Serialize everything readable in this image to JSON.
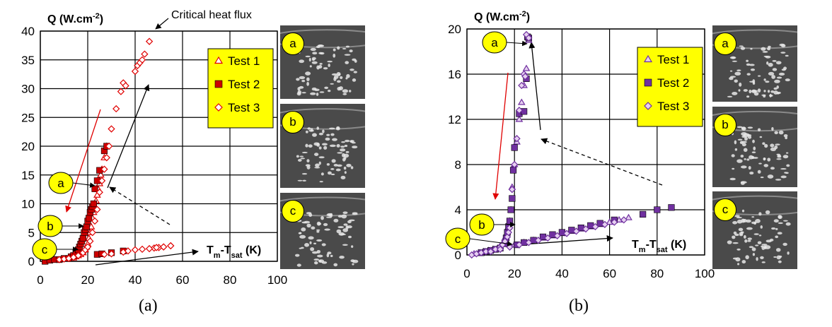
{
  "captions": [
    "(a)",
    "(b)"
  ],
  "photo_labels": [
    "a",
    "b",
    "c"
  ],
  "chart_data": [
    {
      "type": "scatter",
      "title": "",
      "ylabel_base": "Q (W.cm",
      "ylabel_sup": "-2",
      "ylabel_end": ")",
      "xlabel_main": "T",
      "xlabel_sub1": "m",
      "xlabel_mid": "-T",
      "xlabel_sub2": "sat",
      "xlabel_end": " (K)",
      "xlim": [
        0,
        100
      ],
      "ylim": [
        0,
        40
      ],
      "xticks": [
        0,
        20,
        40,
        60,
        80,
        100
      ],
      "yticks": [
        0,
        5,
        10,
        15,
        20,
        25,
        30,
        35,
        40
      ],
      "grid": true,
      "legend_position": "top-right",
      "annotation": "Critical heat flux",
      "point_labels": [
        "a",
        "b",
        "c"
      ],
      "colors": {
        "series": "#e00000",
        "filled": "#cc0000",
        "legend_bg": "#ffff00",
        "label_bg": "#ffff00"
      },
      "series": [
        {
          "name": "Test 1",
          "marker": "triangle-open",
          "x": [
            3,
            6,
            8,
            10,
            12,
            14,
            15,
            16,
            17,
            18,
            19,
            19.5,
            20,
            20.5,
            21,
            21.5,
            22,
            22.5,
            23,
            23.5,
            24,
            24.5,
            25,
            25.5,
            26,
            27,
            28
          ],
          "y": [
            0.2,
            0.3,
            0.3,
            0.4,
            0.5,
            0.6,
            0.8,
            1,
            1.2,
            1.5,
            2,
            2.5,
            3,
            4,
            5,
            6,
            7.5,
            8.5,
            9.5,
            10.5,
            11.5,
            12.5,
            13.5,
            15,
            16,
            18,
            20
          ]
        },
        {
          "name": "Test 2",
          "marker": "square-filled",
          "x": [
            2,
            4,
            6,
            8,
            10,
            12,
            13,
            14,
            15,
            16,
            16.5,
            17,
            17.5,
            18,
            18.5,
            19,
            19.5,
            20,
            20.5,
            21,
            21.5,
            22,
            22.5,
            23,
            24,
            25,
            27,
            28,
            24,
            26,
            30,
            35
          ],
          "y": [
            0,
            0.2,
            0.3,
            0.3,
            0.5,
            0.5,
            0.8,
            1,
            1.5,
            2,
            2.5,
            3,
            3.5,
            4,
            5,
            5.5,
            6,
            7,
            7.5,
            8.5,
            9,
            9.5,
            10,
            12.6,
            14,
            15.8,
            19.2,
            20,
            1.2,
            1.3,
            1.5,
            1.8
          ]
        },
        {
          "name": "Test 3",
          "marker": "diamond-open",
          "x": [
            8,
            10,
            12,
            14,
            16,
            18,
            19,
            20,
            21,
            22,
            23,
            24,
            25,
            26,
            27,
            28,
            29,
            30,
            32,
            34,
            35,
            36,
            40,
            41,
            42,
            43,
            44,
            46,
            48,
            50,
            52,
            55,
            27,
            30,
            35,
            37,
            40,
            43,
            46,
            49,
            52,
            55
          ],
          "y": [
            0.3,
            0.4,
            0.5,
            0.7,
            1,
            1.5,
            2,
            2.5,
            3.5,
            5,
            7,
            9,
            12,
            14,
            16,
            18,
            20,
            23,
            26.5,
            29.5,
            31,
            30.5,
            33,
            34,
            34.5,
            35,
            36,
            38.2,
            2.3,
            2.4,
            2.5,
            2.7,
            1.2,
            1.3,
            1.6,
            1.8,
            2,
            2.1,
            2.2,
            2.4,
            2.5,
            2.7
          ]
        }
      ]
    },
    {
      "type": "scatter",
      "title": "",
      "ylabel_base": "Q (W.cm",
      "ylabel_sup": "-2",
      "ylabel_end": ")",
      "xlabel_main": "T",
      "xlabel_sub1": "m",
      "xlabel_mid": "-T",
      "xlabel_sub2": "sat",
      "xlabel_end": " (K)",
      "xlim": [
        0,
        100
      ],
      "ylim": [
        0,
        20
      ],
      "xticks": [
        0,
        20,
        40,
        60,
        80,
        100
      ],
      "yticks": [
        0,
        4,
        8,
        12,
        16,
        20
      ],
      "grid": true,
      "legend_position": "top-right",
      "point_labels": [
        "a",
        "b",
        "c"
      ],
      "colors": {
        "series": "#7030a0",
        "filled": "#7030a0",
        "open_fill": "#e6d0f0",
        "legend_bg": "#ffff00",
        "label_bg": "#ffff00"
      },
      "series": [
        {
          "name": "Test 1",
          "marker": "triangle-open",
          "x": [
            3,
            5,
            7,
            9,
            11,
            13,
            14,
            15,
            16,
            17,
            17.5,
            18,
            18.5,
            19,
            20,
            21,
            22,
            23,
            24,
            25,
            26,
            20,
            24,
            28,
            32,
            36,
            40,
            44,
            48,
            52,
            56,
            60,
            64,
            68
          ],
          "y": [
            0.1,
            0.2,
            0.3,
            0.4,
            0.5,
            0.6,
            0.8,
            1,
            1.5,
            2,
            2.5,
            3,
            4,
            6,
            8,
            10,
            12,
            13.5,
            15,
            16.5,
            19,
            0.9,
            1.1,
            1.3,
            1.5,
            1.7,
            1.9,
            2.1,
            2.3,
            2.5,
            2.7,
            2.9,
            3.1,
            3.3
          ]
        },
        {
          "name": "Test 2",
          "marker": "square-filled",
          "x": [
            6,
            8,
            10,
            12,
            14,
            16,
            16.5,
            17,
            17.5,
            18,
            18.5,
            19,
            19.5,
            20,
            22,
            24,
            25,
            25.5,
            26,
            21,
            24,
            28,
            32,
            36,
            40,
            44,
            48,
            52,
            56,
            62,
            74,
            80,
            86
          ],
          "y": [
            0.2,
            0.3,
            0.4,
            0.5,
            0.6,
            1,
            1.5,
            2,
            2.5,
            3,
            4,
            5,
            7.5,
            9.5,
            12.5,
            12.7,
            15.6,
            19.3,
            19.2,
            0.9,
            1.1,
            1.3,
            1.6,
            1.8,
            2,
            2.2,
            2.4,
            2.6,
            2.8,
            3.1,
            3.6,
            4,
            4.2
          ]
        },
        {
          "name": "Test 3",
          "marker": "diamond-open",
          "x": [
            2,
            4,
            6,
            8,
            10,
            12,
            14,
            15,
            16,
            17,
            17.5,
            18,
            19,
            20,
            21,
            22,
            23,
            24,
            24.5,
            25,
            26,
            10,
            14,
            18,
            22,
            26,
            30,
            34,
            38,
            42,
            46,
            50,
            54,
            58,
            62,
            66
          ],
          "y": [
            0,
            0.1,
            0.2,
            0.3,
            0.4,
            0.5,
            0.7,
            0.9,
            1.2,
            1.6,
            2,
            2.4,
            5.8,
            8,
            10.3,
            12.8,
            15,
            16,
            15.8,
            19.5,
            19.2,
            0.3,
            0.5,
            0.7,
            0.9,
            1.1,
            1.3,
            1.5,
            1.7,
            1.9,
            2.1,
            2.3,
            2.5,
            2.7,
            2.9,
            3.1
          ]
        }
      ]
    }
  ]
}
